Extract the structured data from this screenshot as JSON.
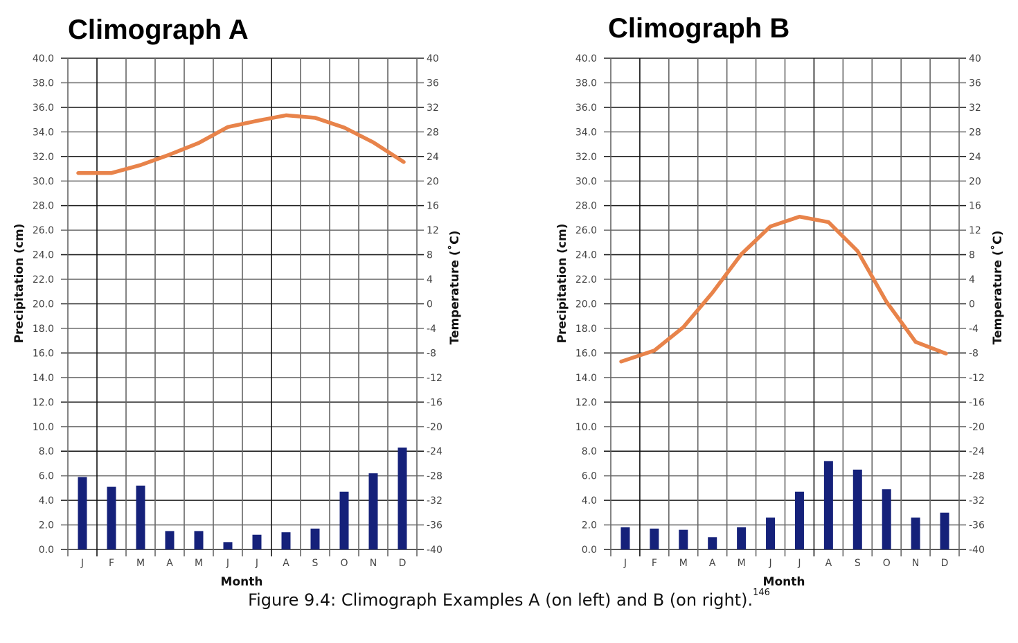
{
  "caption": {
    "text": "Figure 9.4: Climograph Examples A (on left) and B (on right).",
    "footnote": "146"
  },
  "colors": {
    "bar": "#15217a",
    "line": "#e8834a",
    "grid": "#555555"
  },
  "chart_data": [
    {
      "type": "bar+line",
      "title": "Climograph A",
      "xlabel": "Month",
      "ylabel": "Precipitation (cm)",
      "y2label": "Temperature (˚C)",
      "categories": [
        "J",
        "F",
        "M",
        "A",
        "M",
        "J",
        "J",
        "A",
        "S",
        "O",
        "N",
        "D"
      ],
      "ylim": [
        0,
        40
      ],
      "y2lim": [
        -40,
        40
      ],
      "yticks": [
        "0.0",
        "2.0",
        "4.0",
        "6.0",
        "8.0",
        "10.0",
        "12.0",
        "14.0",
        "16.0",
        "18.0",
        "20.0",
        "22.0",
        "24.0",
        "26.0",
        "28.0",
        "30.0",
        "32.0",
        "34.0",
        "36.0",
        "38.0",
        "40.0"
      ],
      "y2ticks": [
        "-40",
        "-36",
        "-32",
        "-28",
        "-24",
        "-20",
        "-16",
        "-12",
        "-8",
        "-4",
        "0",
        "4",
        "8",
        "12",
        "16",
        "20",
        "24",
        "28",
        "32",
        "36",
        "40"
      ],
      "grid": true,
      "series": [
        {
          "name": "Precipitation (cm)",
          "kind": "bar",
          "axis": "left",
          "values": [
            5.9,
            5.1,
            5.2,
            1.5,
            1.5,
            0.6,
            1.2,
            1.4,
            1.7,
            4.7,
            6.2,
            8.3
          ]
        },
        {
          "name": "Temperature (˚C)",
          "kind": "line",
          "axis": "right",
          "values": [
            21.3,
            21.3,
            22.6,
            24.3,
            26.2,
            28.8,
            29.8,
            30.7,
            30.3,
            28.7,
            26.3,
            23.1
          ]
        }
      ]
    },
    {
      "type": "bar+line",
      "title": "Climograph B",
      "xlabel": "Month",
      "ylabel": "Precipitation (cm)",
      "y2label": "Temperature (˚C)",
      "categories": [
        "J",
        "F",
        "M",
        "A",
        "M",
        "J",
        "J",
        "A",
        "S",
        "O",
        "N",
        "D"
      ],
      "ylim": [
        0,
        40
      ],
      "y2lim": [
        -40,
        40
      ],
      "yticks": [
        "0.0",
        "2.0",
        "4.0",
        "6.0",
        "8.0",
        "10.0",
        "12.0",
        "14.0",
        "16.0",
        "18.0",
        "20.0",
        "22.0",
        "24.0",
        "26.0",
        "28.0",
        "30.0",
        "32.0",
        "34.0",
        "36.0",
        "38.0",
        "40.0"
      ],
      "y2ticks": [
        "-40",
        "-36",
        "-32",
        "-28",
        "-24",
        "-20",
        "-16",
        "-12",
        "-8",
        "-4",
        "0",
        "4",
        "8",
        "12",
        "16",
        "20",
        "24",
        "28",
        "32",
        "36",
        "40"
      ],
      "grid": true,
      "series": [
        {
          "name": "Precipitation (cm)",
          "kind": "bar",
          "axis": "left",
          "values": [
            1.8,
            1.7,
            1.6,
            1.0,
            1.8,
            2.6,
            4.7,
            7.2,
            6.5,
            4.9,
            2.6,
            3.0
          ]
        },
        {
          "name": "Temperature (˚C)",
          "kind": "line",
          "axis": "right",
          "values": [
            -9.4,
            -7.6,
            -3.8,
            1.8,
            8.1,
            12.6,
            14.2,
            13.3,
            8.6,
            0.3,
            -6.2,
            -8.1
          ]
        }
      ]
    }
  ]
}
